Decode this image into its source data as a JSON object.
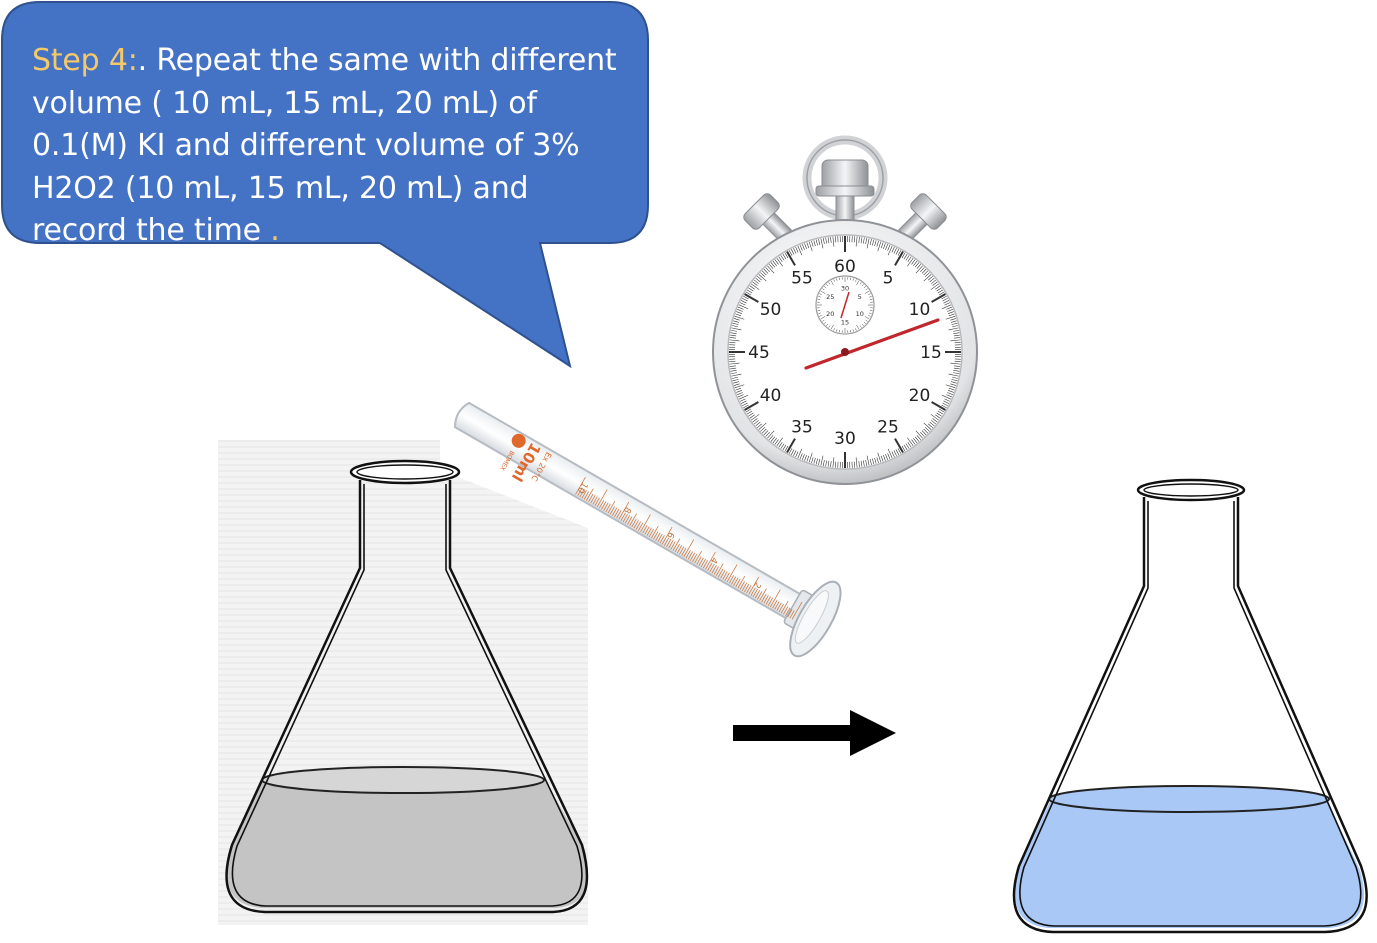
{
  "callout": {
    "step_label": "Step 4:",
    "text": ". Repeat the same with different volume ( 10 mL, 15 mL, 20 mL) of 0.1(M) KI and different volume of 3% H2O2 (10 mL, 15 mL, 20 mL) and record the time",
    "end_mark": " ."
  },
  "stopwatch": {
    "dial_labels": [
      "60",
      "5",
      "10",
      "15",
      "20",
      "25",
      "30",
      "35",
      "40",
      "45",
      "50",
      "55"
    ],
    "sub_dial_labels": [
      "30",
      "5",
      "10",
      "15",
      "20",
      "25"
    ]
  },
  "cylinder": {
    "brand": "BOMEX",
    "capacity": "10ml",
    "spec": "Ex 20°C",
    "scale_labels": [
      "10",
      "8",
      "6",
      "4",
      "2"
    ]
  },
  "colors": {
    "callout_fill": "#4472c4",
    "callout_border": "#2f528f",
    "step_label": "#f5c96a",
    "gray_liquid": "#c4c4c4",
    "blue_liquid": "#a9c8f5",
    "needle": "#c0272d",
    "scale_marks": "#c8733a"
  },
  "icons": [
    "stopwatch-icon",
    "graduated-cylinder-icon",
    "erlenmeyer-flask-icon",
    "right-arrow-icon"
  ]
}
